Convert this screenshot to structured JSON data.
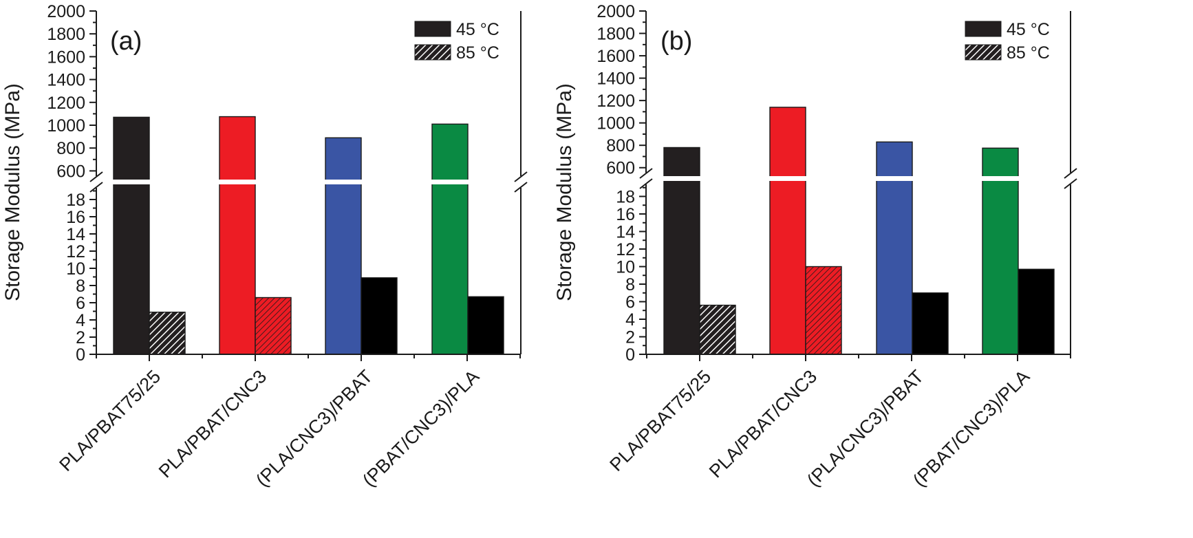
{
  "colors": {
    "PLA/PBAT75/25": "#231f20",
    "PLA/PBAT/CNC3": "#ed1c24",
    "(PLA/CNC3)/PBAT": "#3a55a4",
    "(PBAT/CNC3)/PLA": "#0a8a43"
  },
  "chart_data": [
    {
      "type": "bar",
      "panel_label": "(a)",
      "ylabel": "Storage Modulus (MPa)",
      "categories": [
        "PLA/PBAT75/25",
        "PLA/PBAT/CNC3",
        "(PLA/CNC3)/PBAT",
        "(PBAT/CNC3)/PLA"
      ],
      "series": [
        {
          "name": "45 °C",
          "pattern": "solid",
          "values": [
            1070,
            1075,
            890,
            1010
          ]
        },
        {
          "name": "85 °C",
          "pattern": "hatched",
          "values": [
            4.9,
            6.6,
            8.9,
            6.7
          ]
        }
      ],
      "axis_break": {
        "lower_range": [
          0,
          20
        ],
        "upper_range": [
          500,
          2000
        ]
      },
      "lower_ticks": [
        0,
        2,
        4,
        6,
        8,
        10,
        12,
        14,
        16,
        18
      ],
      "upper_ticks": [
        600,
        800,
        1000,
        1200,
        1400,
        1600,
        1800,
        2000
      ],
      "legend": {
        "items": [
          "45 °C",
          "85 °C"
        ],
        "position": "top-right"
      }
    },
    {
      "type": "bar",
      "panel_label": "(b)",
      "ylabel": "Storage Modulus (MPa)",
      "categories": [
        "PLA/PBAT75/25",
        "PLA/PBAT/CNC3",
        "(PLA/CNC3)/PBAT",
        "(PBAT/CNC3)/PLA"
      ],
      "series": [
        {
          "name": "45 °C",
          "pattern": "solid",
          "values": [
            780,
            1140,
            830,
            775
          ]
        },
        {
          "name": "85 °C",
          "pattern": "hatched",
          "values": [
            5.6,
            10.0,
            7.0,
            9.7
          ]
        }
      ],
      "axis_break": {
        "lower_range": [
          0,
          20
        ],
        "upper_range": [
          500,
          2000
        ]
      },
      "lower_ticks": [
        0,
        2,
        4,
        6,
        8,
        10,
        12,
        14,
        16,
        18
      ],
      "upper_ticks": [
        600,
        800,
        1000,
        1200,
        1400,
        1600,
        1800,
        2000
      ],
      "legend": {
        "items": [
          "45 °C",
          "85 °C"
        ],
        "position": "top-right"
      }
    }
  ]
}
